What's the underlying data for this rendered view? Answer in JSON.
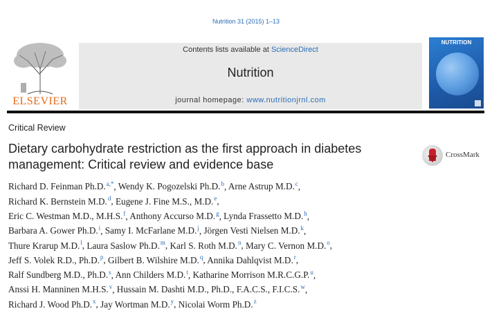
{
  "header": {
    "citation": "Nutrition 31 (2015) 1–13",
    "publisher_name": "ELSEVIER",
    "contents_prefix": "Contents lists available at ",
    "contents_link": "ScienceDirect",
    "journal_name": "Nutrition",
    "homepage_prefix": "journal homepage: ",
    "homepage_url": "www.nutritionjrnl.com",
    "cover_title": "NUTRITION",
    "colors": {
      "link": "#2a6cb5",
      "publisher": "#e66a1a",
      "banner": "#e9e9e9"
    }
  },
  "article": {
    "category": "Critical Review",
    "title_lines": [
      "Dietary carbohydrate restriction as the first approach in diabetes",
      "management: Critical review and evidence base"
    ],
    "crossmark_label": "CrossMark",
    "author_lines": [
      [
        {
          "name": "Richard D. Feinman Ph.D.",
          "sup": "a,*"
        },
        {
          "name": "Wendy K. Pogozelski Ph.D.",
          "sup": "b"
        },
        {
          "name": "Arne Astrup M.D.",
          "sup": "c"
        }
      ],
      [
        {
          "name": "Richard K. Bernstein M.D.",
          "sup": "d"
        },
        {
          "name": "Eugene J. Fine M.S., M.D.",
          "sup": "e"
        }
      ],
      [
        {
          "name": "Eric C. Westman M.D., M.H.S.",
          "sup": "f"
        },
        {
          "name": "Anthony Accurso M.D.",
          "sup": "g"
        },
        {
          "name": "Lynda Frassetto M.D.",
          "sup": "h"
        }
      ],
      [
        {
          "name": "Barbara A. Gower Ph.D.",
          "sup": "i"
        },
        {
          "name": "Samy I. McFarlane M.D.",
          "sup": "j"
        },
        {
          "name": "Jörgen Vesti Nielsen M.D.",
          "sup": "k"
        }
      ],
      [
        {
          "name": "Thure Krarup M.D.",
          "sup": "l"
        },
        {
          "name": "Laura Saslow Ph.D.",
          "sup": "m"
        },
        {
          "name": "Karl S. Roth M.D.",
          "sup": "n"
        },
        {
          "name": "Mary C. Vernon M.D.",
          "sup": "o"
        }
      ],
      [
        {
          "name": "Jeff S. Volek R.D., Ph.D.",
          "sup": "p"
        },
        {
          "name": "Gilbert B. Wilshire M.D.",
          "sup": "q"
        },
        {
          "name": "Annika Dahlqvist M.D.",
          "sup": "r"
        }
      ],
      [
        {
          "name": "Ralf Sundberg M.D., Ph.D.",
          "sup": "s"
        },
        {
          "name": "Ann Childers M.D.",
          "sup": "t"
        },
        {
          "name": "Katharine Morrison M.R.C.G.P.",
          "sup": "u"
        }
      ],
      [
        {
          "name": "Anssi H. Manninen M.H.S.",
          "sup": "v"
        },
        {
          "name": "Hussain M. Dashti M.D., Ph.D., F.A.C.S., F.I.C.S.",
          "sup": "w"
        }
      ],
      [
        {
          "name": "Richard J. Wood Ph.D.",
          "sup": "x"
        },
        {
          "name": "Jay Wortman M.D.",
          "sup": "y"
        },
        {
          "name": "Nicolai Worm Ph.D.",
          "sup": "z"
        }
      ]
    ]
  }
}
